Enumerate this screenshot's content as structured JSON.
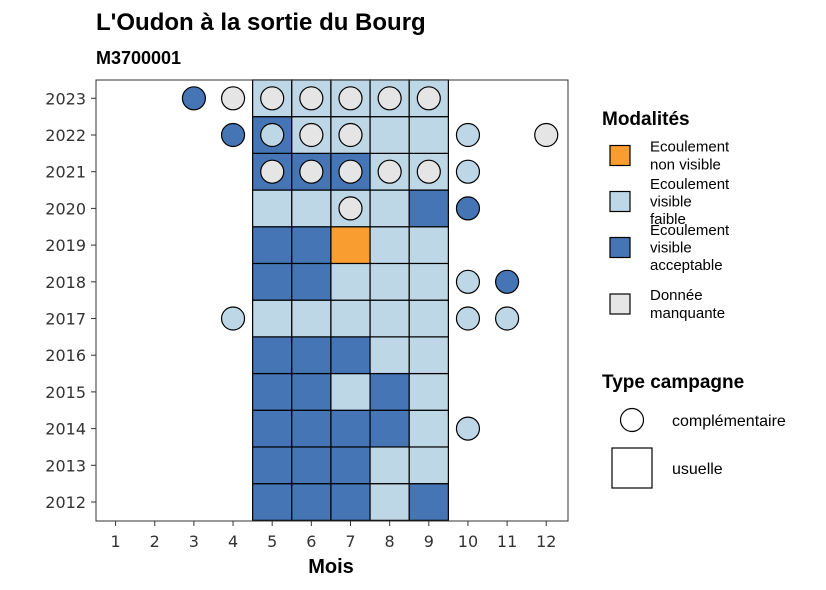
{
  "chart_data": {
    "type": "heatmap",
    "title": "L'Oudon à la sortie du Bourg",
    "subtitle": "M3700001",
    "xlabel": "Mois",
    "ylabel": "",
    "x_ticks": [
      "1",
      "2",
      "3",
      "4",
      "5",
      "6",
      "7",
      "8",
      "9",
      "10",
      "11",
      "12"
    ],
    "y_ticks": [
      "2012",
      "2013",
      "2014",
      "2015",
      "2016",
      "2017",
      "2018",
      "2019",
      "2020",
      "2021",
      "2022",
      "2023"
    ],
    "grid": false,
    "legend_position": "right",
    "colors": {
      "non_visible": "#F99D31",
      "visible_faible": "#BDD7E7",
      "visible_acceptable": "#4575B4",
      "manquante": "#E5E5E5"
    },
    "legends": {
      "modalites": {
        "title": "Modalités",
        "entries": [
          {
            "key": "non_visible",
            "lines": [
              "Ecoulement",
              "non visible"
            ]
          },
          {
            "key": "visible_faible",
            "lines": [
              "Ecoulement",
              "visible",
              "faible"
            ]
          },
          {
            "key": "visible_acceptable",
            "lines": [
              "Ecoulement",
              "visible",
              "acceptable"
            ]
          },
          {
            "key": "manquante",
            "lines": [
              "Donnée",
              "manquante"
            ]
          }
        ]
      },
      "campagne": {
        "title": "Type campagne",
        "entries": [
          {
            "shape": "circle",
            "label": "complémentaire"
          },
          {
            "shape": "square",
            "label": "usuelle"
          }
        ]
      }
    },
    "observations": [
      {
        "year": 2012,
        "month": 5,
        "type": "usuelle",
        "modalite": "visible_acceptable"
      },
      {
        "year": 2012,
        "month": 6,
        "type": "usuelle",
        "modalite": "visible_acceptable"
      },
      {
        "year": 2012,
        "month": 7,
        "type": "usuelle",
        "modalite": "visible_acceptable"
      },
      {
        "year": 2012,
        "month": 8,
        "type": "usuelle",
        "modalite": "visible_faible"
      },
      {
        "year": 2012,
        "month": 9,
        "type": "usuelle",
        "modalite": "visible_acceptable"
      },
      {
        "year": 2013,
        "month": 5,
        "type": "usuelle",
        "modalite": "visible_acceptable"
      },
      {
        "year": 2013,
        "month": 6,
        "type": "usuelle",
        "modalite": "visible_acceptable"
      },
      {
        "year": 2013,
        "month": 7,
        "type": "usuelle",
        "modalite": "visible_acceptable"
      },
      {
        "year": 2013,
        "month": 8,
        "type": "usuelle",
        "modalite": "visible_faible"
      },
      {
        "year": 2013,
        "month": 9,
        "type": "usuelle",
        "modalite": "visible_faible"
      },
      {
        "year": 2014,
        "month": 5,
        "type": "usuelle",
        "modalite": "visible_acceptable"
      },
      {
        "year": 2014,
        "month": 6,
        "type": "usuelle",
        "modalite": "visible_acceptable"
      },
      {
        "year": 2014,
        "month": 7,
        "type": "usuelle",
        "modalite": "visible_acceptable"
      },
      {
        "year": 2014,
        "month": 8,
        "type": "usuelle",
        "modalite": "visible_acceptable"
      },
      {
        "year": 2014,
        "month": 9,
        "type": "usuelle",
        "modalite": "visible_faible"
      },
      {
        "year": 2014,
        "month": 10,
        "type": "complementaire",
        "modalite": "visible_faible"
      },
      {
        "year": 2015,
        "month": 5,
        "type": "usuelle",
        "modalite": "visible_acceptable"
      },
      {
        "year": 2015,
        "month": 6,
        "type": "usuelle",
        "modalite": "visible_acceptable"
      },
      {
        "year": 2015,
        "month": 7,
        "type": "usuelle",
        "modalite": "visible_faible"
      },
      {
        "year": 2015,
        "month": 8,
        "type": "usuelle",
        "modalite": "visible_acceptable"
      },
      {
        "year": 2015,
        "month": 9,
        "type": "usuelle",
        "modalite": "visible_faible"
      },
      {
        "year": 2016,
        "month": 5,
        "type": "usuelle",
        "modalite": "visible_acceptable"
      },
      {
        "year": 2016,
        "month": 6,
        "type": "usuelle",
        "modalite": "visible_acceptable"
      },
      {
        "year": 2016,
        "month": 7,
        "type": "usuelle",
        "modalite": "visible_acceptable"
      },
      {
        "year": 2016,
        "month": 8,
        "type": "usuelle",
        "modalite": "visible_faible"
      },
      {
        "year": 2016,
        "month": 9,
        "type": "usuelle",
        "modalite": "visible_faible"
      },
      {
        "year": 2017,
        "month": 4,
        "type": "complementaire",
        "modalite": "visible_faible"
      },
      {
        "year": 2017,
        "month": 5,
        "type": "usuelle",
        "modalite": "visible_faible"
      },
      {
        "year": 2017,
        "month": 6,
        "type": "usuelle",
        "modalite": "visible_faible"
      },
      {
        "year": 2017,
        "month": 7,
        "type": "usuelle",
        "modalite": "visible_faible"
      },
      {
        "year": 2017,
        "month": 8,
        "type": "usuelle",
        "modalite": "visible_faible"
      },
      {
        "year": 2017,
        "month": 9,
        "type": "usuelle",
        "modalite": "visible_faible"
      },
      {
        "year": 2017,
        "month": 10,
        "type": "complementaire",
        "modalite": "visible_faible"
      },
      {
        "year": 2017,
        "month": 11,
        "type": "complementaire",
        "modalite": "visible_faible"
      },
      {
        "year": 2018,
        "month": 5,
        "type": "usuelle",
        "modalite": "visible_acceptable"
      },
      {
        "year": 2018,
        "month": 6,
        "type": "usuelle",
        "modalite": "visible_acceptable"
      },
      {
        "year": 2018,
        "month": 7,
        "type": "usuelle",
        "modalite": "visible_faible"
      },
      {
        "year": 2018,
        "month": 8,
        "type": "usuelle",
        "modalite": "visible_faible"
      },
      {
        "year": 2018,
        "month": 9,
        "type": "usuelle",
        "modalite": "visible_faible"
      },
      {
        "year": 2018,
        "month": 10,
        "type": "complementaire",
        "modalite": "visible_faible"
      },
      {
        "year": 2018,
        "month": 11,
        "type": "complementaire",
        "modalite": "visible_acceptable"
      },
      {
        "year": 2019,
        "month": 5,
        "type": "usuelle",
        "modalite": "visible_acceptable"
      },
      {
        "year": 2019,
        "month": 6,
        "type": "usuelle",
        "modalite": "visible_acceptable"
      },
      {
        "year": 2019,
        "month": 7,
        "type": "usuelle",
        "modalite": "non_visible"
      },
      {
        "year": 2019,
        "month": 8,
        "type": "usuelle",
        "modalite": "visible_faible"
      },
      {
        "year": 2019,
        "month": 9,
        "type": "usuelle",
        "modalite": "visible_faible"
      },
      {
        "year": 2020,
        "month": 5,
        "type": "usuelle",
        "modalite": "visible_faible"
      },
      {
        "year": 2020,
        "month": 6,
        "type": "usuelle",
        "modalite": "visible_faible"
      },
      {
        "year": 2020,
        "month": 7,
        "type": "usuelle",
        "modalite": "visible_faible"
      },
      {
        "year": 2020,
        "month": 7,
        "type": "complementaire",
        "modalite": "manquante"
      },
      {
        "year": 2020,
        "month": 8,
        "type": "usuelle",
        "modalite": "visible_faible"
      },
      {
        "year": 2020,
        "month": 9,
        "type": "usuelle",
        "modalite": "visible_acceptable"
      },
      {
        "year": 2020,
        "month": 10,
        "type": "complementaire",
        "modalite": "visible_acceptable"
      },
      {
        "year": 2021,
        "month": 5,
        "type": "usuelle",
        "modalite": "visible_acceptable"
      },
      {
        "year": 2021,
        "month": 5,
        "type": "complementaire",
        "modalite": "manquante"
      },
      {
        "year": 2021,
        "month": 6,
        "type": "usuelle",
        "modalite": "visible_acceptable"
      },
      {
        "year": 2021,
        "month": 6,
        "type": "complementaire",
        "modalite": "manquante"
      },
      {
        "year": 2021,
        "month": 7,
        "type": "usuelle",
        "modalite": "visible_acceptable"
      },
      {
        "year": 2021,
        "month": 7,
        "type": "complementaire",
        "modalite": "manquante"
      },
      {
        "year": 2021,
        "month": 8,
        "type": "usuelle",
        "modalite": "visible_faible"
      },
      {
        "year": 2021,
        "month": 8,
        "type": "complementaire",
        "modalite": "manquante"
      },
      {
        "year": 2021,
        "month": 9,
        "type": "usuelle",
        "modalite": "visible_faible"
      },
      {
        "year": 2021,
        "month": 9,
        "type": "complementaire",
        "modalite": "manquante"
      },
      {
        "year": 2021,
        "month": 10,
        "type": "complementaire",
        "modalite": "visible_faible"
      },
      {
        "year": 2022,
        "month": 4,
        "type": "complementaire",
        "modalite": "visible_acceptable"
      },
      {
        "year": 2022,
        "month": 5,
        "type": "usuelle",
        "modalite": "visible_acceptable"
      },
      {
        "year": 2022,
        "month": 5,
        "type": "complementaire",
        "modalite": "visible_faible"
      },
      {
        "year": 2022,
        "month": 6,
        "type": "usuelle",
        "modalite": "visible_faible"
      },
      {
        "year": 2022,
        "month": 6,
        "type": "complementaire",
        "modalite": "manquante"
      },
      {
        "year": 2022,
        "month": 7,
        "type": "usuelle",
        "modalite": "visible_faible"
      },
      {
        "year": 2022,
        "month": 7,
        "type": "complementaire",
        "modalite": "manquante"
      },
      {
        "year": 2022,
        "month": 8,
        "type": "usuelle",
        "modalite": "visible_faible"
      },
      {
        "year": 2022,
        "month": 9,
        "type": "usuelle",
        "modalite": "visible_faible"
      },
      {
        "year": 2022,
        "month": 10,
        "type": "complementaire",
        "modalite": "visible_faible"
      },
      {
        "year": 2022,
        "month": 12,
        "type": "complementaire",
        "modalite": "manquante"
      },
      {
        "year": 2023,
        "month": 3,
        "type": "complementaire",
        "modalite": "visible_acceptable"
      },
      {
        "year": 2023,
        "month": 4,
        "type": "complementaire",
        "modalite": "manquante"
      },
      {
        "year": 2023,
        "month": 5,
        "type": "usuelle",
        "modalite": "visible_faible"
      },
      {
        "year": 2023,
        "month": 5,
        "type": "complementaire",
        "modalite": "manquante"
      },
      {
        "year": 2023,
        "month": 6,
        "type": "usuelle",
        "modalite": "visible_faible"
      },
      {
        "year": 2023,
        "month": 6,
        "type": "complementaire",
        "modalite": "manquante"
      },
      {
        "year": 2023,
        "month": 7,
        "type": "usuelle",
        "modalite": "visible_faible"
      },
      {
        "year": 2023,
        "month": 7,
        "type": "complementaire",
        "modalite": "manquante"
      },
      {
        "year": 2023,
        "month": 8,
        "type": "usuelle",
        "modalite": "visible_faible"
      },
      {
        "year": 2023,
        "month": 8,
        "type": "complementaire",
        "modalite": "manquante"
      },
      {
        "year": 2023,
        "month": 9,
        "type": "usuelle",
        "modalite": "visible_faible"
      },
      {
        "year": 2023,
        "month": 9,
        "type": "complementaire",
        "modalite": "manquante"
      }
    ]
  }
}
